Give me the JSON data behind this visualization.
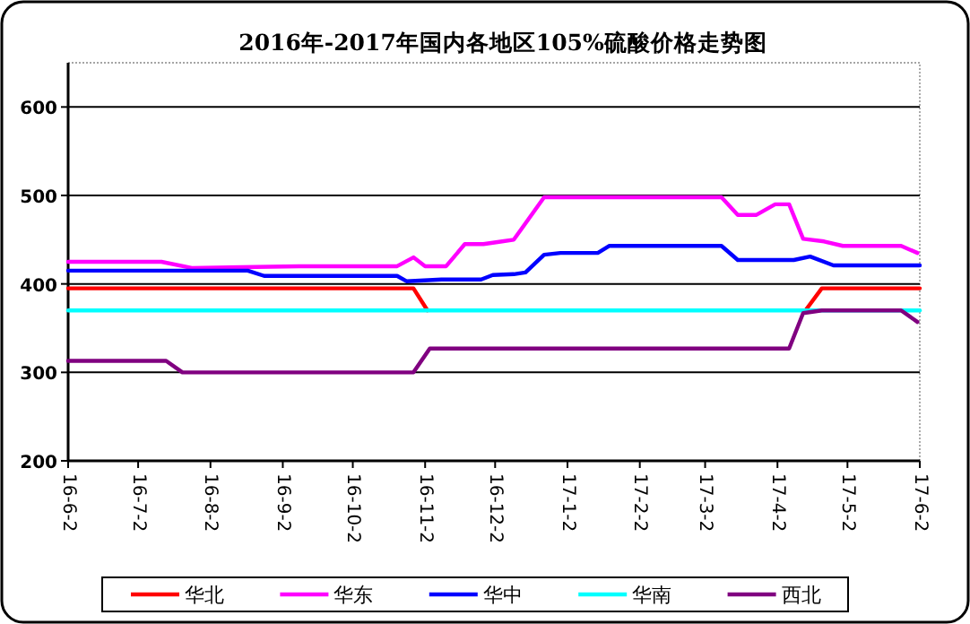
{
  "chart_data": {
    "type": "line",
    "title": "2016年-2017年国内各地区105%硫酸价格走势图",
    "xlim": [
      "2016-06-02",
      "2017-06-02"
    ],
    "xticks": [
      {
        "value": "2016-06-02",
        "label": "16-6-2"
      },
      {
        "value": "2016-07-02",
        "label": "16-7-2"
      },
      {
        "value": "2016-08-02",
        "label": "16-8-2"
      },
      {
        "value": "2016-09-02",
        "label": "16-9-2"
      },
      {
        "value": "2016-10-02",
        "label": "16-10-2"
      },
      {
        "value": "2016-11-02",
        "label": "16-11-2"
      },
      {
        "value": "2016-12-02",
        "label": "16-12-2"
      },
      {
        "value": "2017-01-02",
        "label": "17-1-2"
      },
      {
        "value": "2017-02-02",
        "label": "17-2-2"
      },
      {
        "value": "2017-03-02",
        "label": "17-3-2"
      },
      {
        "value": "2017-04-02",
        "label": "17-4-2"
      },
      {
        "value": "2017-05-02",
        "label": "17-5-2"
      },
      {
        "value": "2017-06-02",
        "label": "17-6-2"
      }
    ],
    "ylim": [
      200,
      650
    ],
    "yticks": [
      200,
      300,
      400,
      500,
      600
    ],
    "grid": "y",
    "legend": "bottom",
    "marker": "none",
    "line_style": "solid",
    "series": [
      {
        "name": "华北",
        "color": "#ff0000",
        "x": [
          "2016-06-02",
          "2016-10-28",
          "2016-11-03",
          "2016-11-10",
          "2017-04-14",
          "2017-04-21",
          "2017-06-02"
        ],
        "values": [
          395,
          395,
          370,
          null,
          370,
          395,
          395
        ]
      },
      {
        "name": "华东",
        "color": "#ff00ff",
        "x": [
          "2016-06-02",
          "2016-07-12",
          "2016-07-25",
          "2016-09-09",
          "2016-10-21",
          "2016-10-28",
          "2016-11-02",
          "2016-11-11",
          "2016-11-19",
          "2016-11-27",
          "2016-12-05",
          "2016-12-10",
          "2016-12-23",
          "2017-03-09",
          "2017-03-16",
          "2017-03-24",
          "2017-04-01",
          "2017-04-07",
          "2017-04-13",
          "2017-04-22",
          "2017-04-30",
          "2017-05-25",
          "2017-06-01"
        ],
        "values": [
          425,
          425,
          418,
          420,
          420,
          430,
          420,
          420,
          445,
          445,
          448,
          450,
          498,
          498,
          478,
          478,
          490,
          490,
          451,
          448,
          443,
          443,
          435
        ]
      },
      {
        "name": "华中",
        "color": "#0000ff",
        "x": [
          "2016-06-02",
          "2016-08-18",
          "2016-08-25",
          "2016-10-21",
          "2016-10-25",
          "2016-11-09",
          "2016-11-26",
          "2016-12-01",
          "2016-12-10",
          "2016-12-15",
          "2016-12-23",
          "2016-12-30",
          "2017-01-15",
          "2017-01-20",
          "2017-03-09",
          "2017-03-16",
          "2017-04-09",
          "2017-04-16",
          "2017-04-26",
          "2017-06-02"
        ],
        "values": [
          415,
          415,
          409,
          409,
          403,
          405,
          405,
          410,
          411,
          413,
          433,
          435,
          435,
          443,
          443,
          427,
          427,
          431,
          421,
          421
        ]
      },
      {
        "name": "华南",
        "color": "#00ffff",
        "x": [
          "2016-06-02",
          "2017-06-02"
        ],
        "values": [
          370,
          370
        ]
      },
      {
        "name": "西北",
        "color": "#800080",
        "x": [
          "2016-06-02",
          "2016-07-14",
          "2016-07-21",
          "2016-10-28",
          "2016-11-04",
          "2017-04-07",
          "2017-04-13",
          "2017-04-21",
          "2017-05-25",
          "2017-06-01"
        ],
        "values": [
          313,
          313,
          300,
          300,
          327,
          327,
          367,
          370,
          370,
          357
        ]
      }
    ]
  }
}
